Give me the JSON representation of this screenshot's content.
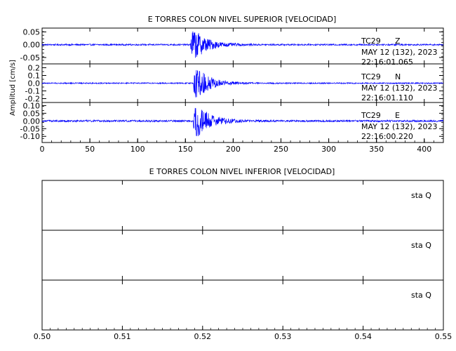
{
  "chart_data": [
    {
      "type": "line",
      "title": "E TORRES COLON NIVEL SUPERIOR [VELOCIDAD]",
      "xlabel": "",
      "ylabel": "Amplitud [cm/s]",
      "xlim": [
        0,
        420
      ],
      "x_ticks": [
        "0",
        "50",
        "100",
        "150",
        "200",
        "250",
        "300",
        "350",
        "400"
      ],
      "x_tick_values": [
        0,
        50,
        100,
        150,
        200,
        250,
        300,
        350,
        400
      ],
      "grid": false,
      "line_color": "#0000ff",
      "series": [
        {
          "station": "TC29",
          "component": "Z",
          "date": "MAY 12 (132), 2023",
          "time": "22:16:01.065",
          "ylim": [
            -0.075,
            0.065
          ],
          "y_ticks": [
            "0.05",
            "0.00",
            "-0.05"
          ],
          "y_tick_values": [
            0.05,
            0.0,
            -0.05
          ],
          "event_onset_s": 155,
          "peak_amplitude": 0.065,
          "noise_amplitude": 0.003
        },
        {
          "station": "TC29",
          "component": "N",
          "date": "MAY 12 (132), 2023",
          "time": "22:16:01.110",
          "ylim": [
            -0.25,
            0.25
          ],
          "y_ticks": [
            "0.2",
            "0.1",
            "0.0",
            "-0.1",
            "-0.2"
          ],
          "y_tick_values": [
            0.2,
            0.1,
            0.0,
            -0.1,
            -0.2
          ],
          "event_onset_s": 158,
          "peak_amplitude": 0.22,
          "noise_amplitude": 0.008
        },
        {
          "station": "TC29",
          "component": "E",
          "date": "MAY 12 (132), 2023",
          "time": "22:16:00.220",
          "ylim": [
            -0.14,
            0.12
          ],
          "y_ticks": [
            "0.10",
            "0.05",
            "0.00",
            "-0.05",
            "-0.10"
          ],
          "y_tick_values": [
            0.1,
            0.05,
            0.0,
            -0.05,
            -0.1
          ],
          "event_onset_s": 158,
          "peak_amplitude": 0.12,
          "noise_amplitude": 0.006
        }
      ]
    },
    {
      "type": "line",
      "title": "E TORRES COLON NIVEL INFERIOR [VELOCIDAD]",
      "xlabel": "",
      "ylabel": "",
      "xlim": [
        0.5,
        0.55
      ],
      "x_ticks": [
        "0.50",
        "0.51",
        "0.52",
        "0.53",
        "0.54",
        "0.55"
      ],
      "x_tick_values": [
        0.5,
        0.51,
        0.52,
        0.53,
        0.54,
        0.55
      ],
      "grid": false,
      "series": [
        {
          "label": "sta   Q"
        },
        {
          "label": "sta   Q"
        },
        {
          "label": "sta   Q"
        }
      ]
    }
  ]
}
